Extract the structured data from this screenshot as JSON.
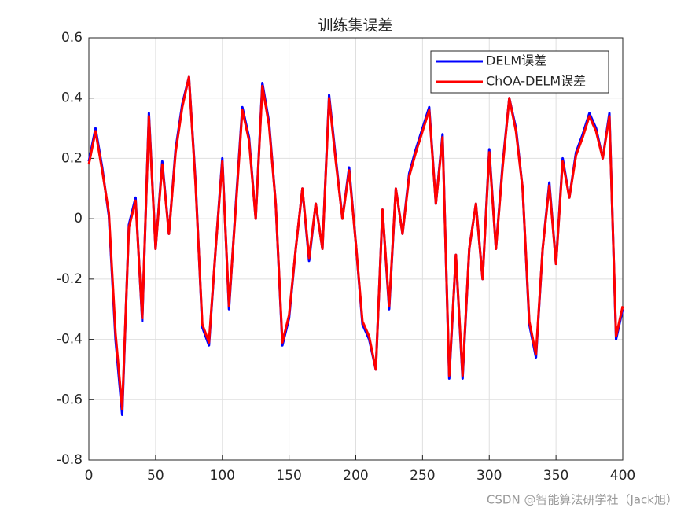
{
  "chart_data": {
    "type": "line",
    "title": "训练集误差",
    "x": [
      0,
      5,
      10,
      15,
      20,
      25,
      30,
      35,
      40,
      45,
      50,
      55,
      60,
      65,
      70,
      75,
      80,
      85,
      90,
      95,
      100,
      105,
      110,
      115,
      120,
      125,
      130,
      135,
      140,
      145,
      150,
      155,
      160,
      165,
      170,
      175,
      180,
      185,
      190,
      195,
      200,
      205,
      210,
      215,
      220,
      225,
      230,
      235,
      240,
      245,
      250,
      255,
      260,
      265,
      270,
      275,
      280,
      285,
      290,
      295,
      300,
      305,
      310,
      315,
      320,
      325,
      330,
      335,
      340,
      345,
      350,
      355,
      360,
      365,
      370,
      375,
      380,
      385,
      390,
      395,
      400
    ],
    "series": [
      {
        "name": "DELM误差",
        "color": "#0000ff",
        "values": [
          0.19,
          0.3,
          0.17,
          0.01,
          -0.4,
          -0.65,
          -0.02,
          0.07,
          -0.34,
          0.35,
          -0.1,
          0.19,
          -0.05,
          0.23,
          0.38,
          0.47,
          0.12,
          -0.36,
          -0.42,
          -0.1,
          0.2,
          -0.3,
          0.04,
          0.37,
          0.27,
          0.0,
          0.45,
          0.32,
          0.05,
          -0.42,
          -0.33,
          -0.1,
          0.1,
          -0.14,
          0.05,
          -0.1,
          0.41,
          0.2,
          0.0,
          0.17,
          -0.08,
          -0.35,
          -0.4,
          -0.5,
          0.03,
          -0.3,
          0.1,
          -0.05,
          0.15,
          0.23,
          0.3,
          0.37,
          0.05,
          0.28,
          -0.53,
          -0.12,
          -0.53,
          -0.1,
          0.05,
          -0.2,
          0.23,
          -0.1,
          0.18,
          0.4,
          0.3,
          0.1,
          -0.35,
          -0.46,
          -0.1,
          0.12,
          -0.15,
          0.2,
          0.07,
          0.22,
          0.28,
          0.35,
          0.3,
          0.2,
          0.35,
          -0.4,
          -0.3
        ]
      },
      {
        "name": "ChOA-DELM误差",
        "color": "#ff0000",
        "values": [
          0.18,
          0.29,
          0.16,
          0.02,
          -0.38,
          -0.63,
          -0.03,
          0.06,
          -0.33,
          0.34,
          -0.1,
          0.18,
          -0.05,
          0.22,
          0.37,
          0.47,
          0.11,
          -0.35,
          -0.41,
          -0.1,
          0.19,
          -0.29,
          0.03,
          0.36,
          0.26,
          0.0,
          0.44,
          0.31,
          0.05,
          -0.41,
          -0.32,
          -0.1,
          0.1,
          -0.13,
          0.05,
          -0.1,
          0.4,
          0.19,
          0.0,
          0.16,
          -0.08,
          -0.34,
          -0.39,
          -0.5,
          0.03,
          -0.29,
          0.1,
          -0.05,
          0.14,
          0.22,
          0.29,
          0.36,
          0.05,
          0.27,
          -0.52,
          -0.12,
          -0.52,
          -0.1,
          0.05,
          -0.2,
          0.22,
          -0.1,
          0.17,
          0.4,
          0.29,
          0.1,
          -0.34,
          -0.45,
          -0.1,
          0.11,
          -0.15,
          0.19,
          0.07,
          0.21,
          0.27,
          0.34,
          0.29,
          0.2,
          0.34,
          -0.39,
          -0.29
        ]
      }
    ],
    "xlim": [
      0,
      400
    ],
    "xticks": [
      0,
      50,
      100,
      150,
      200,
      250,
      300,
      350,
      400
    ],
    "ylim": [
      -0.8,
      0.6
    ],
    "yticks": [
      -0.8,
      -0.6,
      -0.4,
      -0.2,
      0,
      0.2,
      0.4,
      0.6
    ],
    "grid": true,
    "legend": "northeast"
  },
  "watermark": "CSDN @智能算法研学社（Jack旭）"
}
